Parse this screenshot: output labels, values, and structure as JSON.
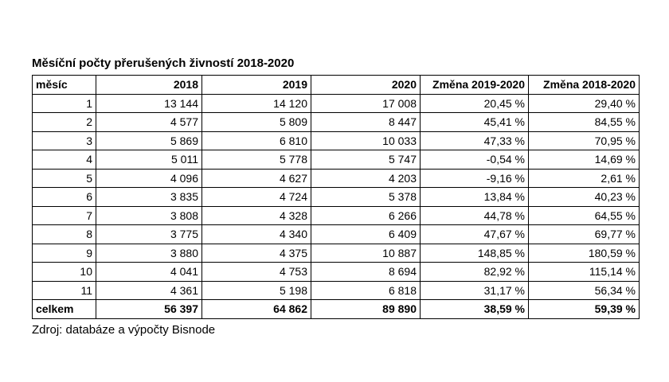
{
  "title": "Měsíční počty přerušených živností 2018-2020",
  "table": {
    "headers": [
      "měsíc",
      "2018",
      "2019",
      "2020",
      "Změna 2019-2020",
      "Změna 2018-2020"
    ],
    "rows": [
      [
        "1",
        "13 144",
        "14 120",
        "17 008",
        "20,45 %",
        "29,40 %"
      ],
      [
        "2",
        "4 577",
        "5 809",
        "8 447",
        "45,41 %",
        "84,55 %"
      ],
      [
        "3",
        "5 869",
        "6 810",
        "10 033",
        "47,33 %",
        "70,95 %"
      ],
      [
        "4",
        "5 011",
        "5 778",
        "5 747",
        "-0,54 %",
        "14,69 %"
      ],
      [
        "5",
        "4 096",
        "4 627",
        "4 203",
        "-9,16 %",
        "2,61 %"
      ],
      [
        "6",
        "3 835",
        "4 724",
        "5 378",
        "13,84 %",
        "40,23 %"
      ],
      [
        "7",
        "3 808",
        "4 328",
        "6 266",
        "44,78 %",
        "64,55 %"
      ],
      [
        "8",
        "3 775",
        "4 340",
        "6 409",
        "47,67 %",
        "69,77 %"
      ],
      [
        "9",
        "3 880",
        "4 375",
        "10 887",
        "148,85 %",
        "180,59 %"
      ],
      [
        "10",
        "4 041",
        "4 753",
        "8 694",
        "82,92 %",
        "115,14 %"
      ],
      [
        "11",
        "4 361",
        "5 198",
        "6 818",
        "31,17 %",
        "56,34 %"
      ]
    ],
    "total": [
      "celkem",
      "56 397",
      "64 862",
      "89 890",
      "38,59 %",
      "59,39 %"
    ]
  },
  "source": "Zdroj: databáze a výpočty Bisnode"
}
